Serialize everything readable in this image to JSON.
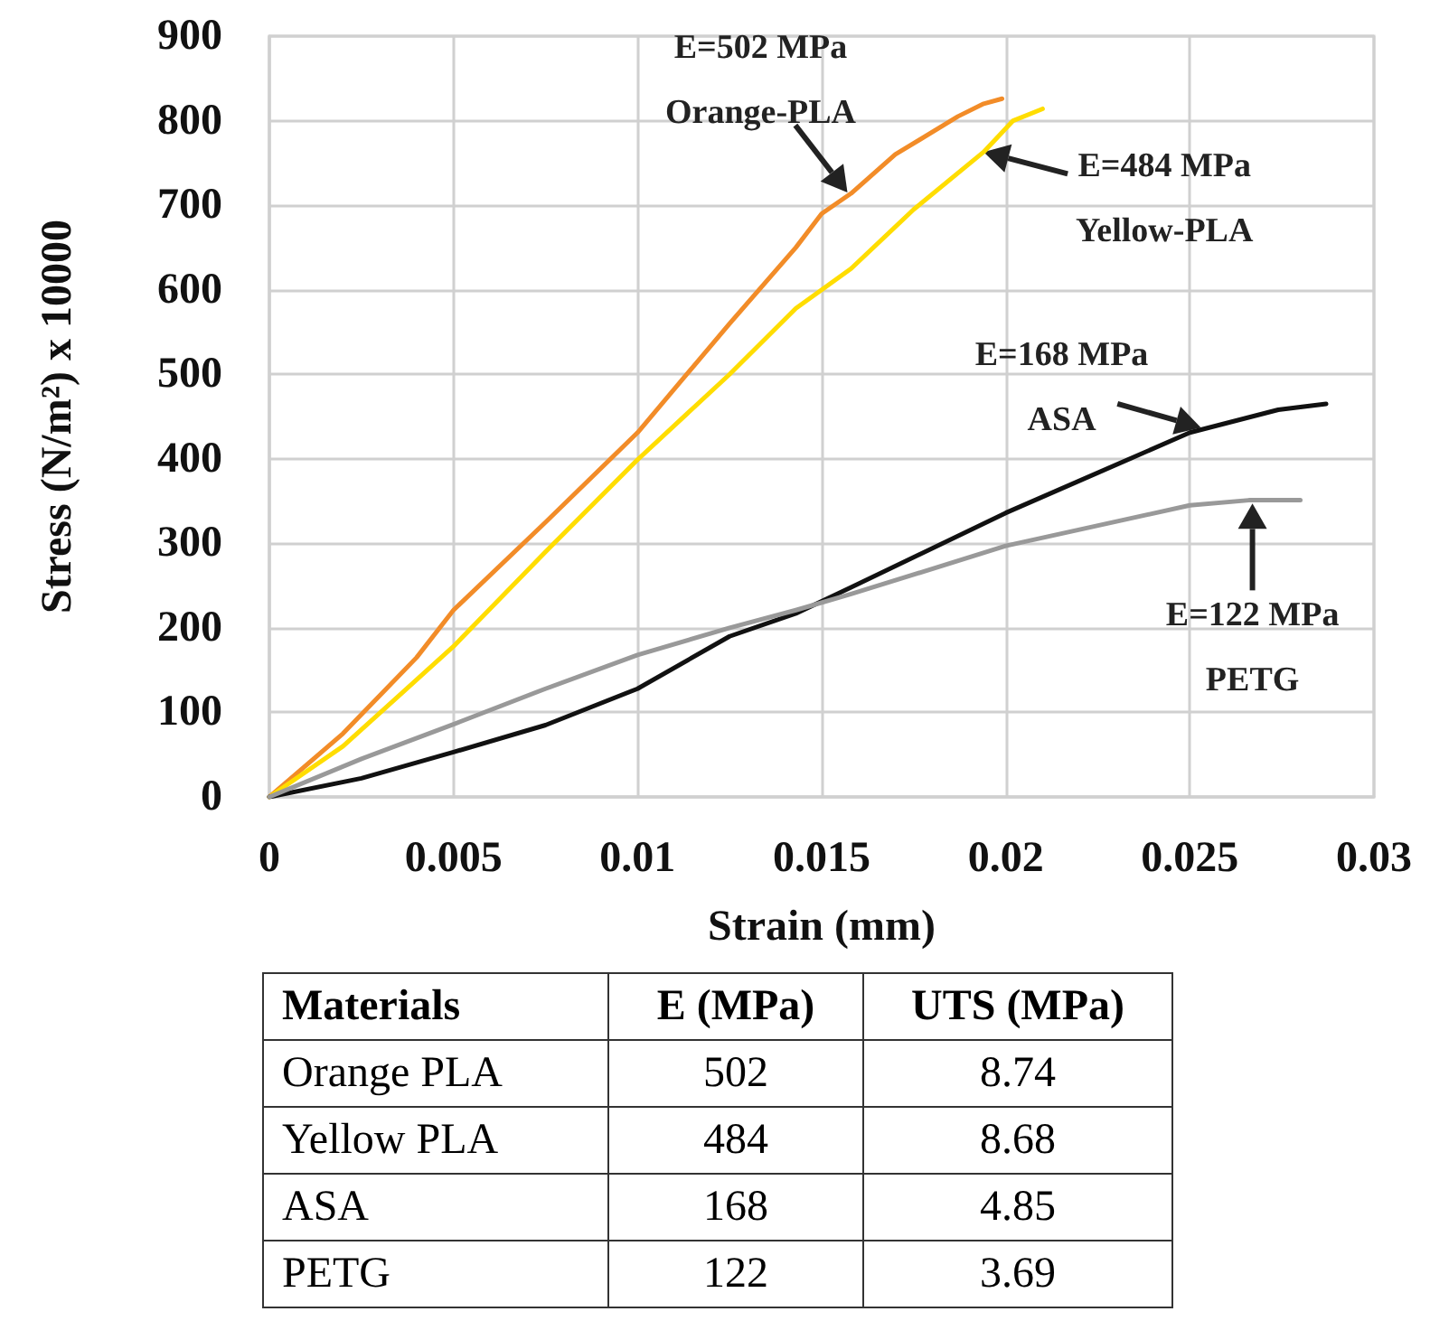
{
  "chart_data": {
    "type": "line",
    "xlabel": "Strain (mm)",
    "ylabel": "Stress (N/m²) x 10000",
    "xlim": [
      0,
      0.03
    ],
    "xticks": [
      0,
      0.005,
      0.01,
      0.015,
      0.02,
      0.025,
      0.03
    ],
    "ylim": [
      0,
      900
    ],
    "yticks": [
      0,
      100,
      200,
      300,
      400,
      500,
      600,
      700,
      800,
      900
    ],
    "grid": true,
    "marker": "none",
    "line_style": "solid",
    "series": [
      {
        "color": "#f28c28",
        "x": [
          0,
          0.002,
          0.004,
          0.005,
          0.0075,
          0.01,
          0.0125,
          0.0143,
          0.015,
          0.0158,
          0.017,
          0.0187,
          0.0194,
          0.0199
        ],
        "values": [
          0,
          75,
          165,
          221,
          325,
          431,
          560,
          650,
          690,
          714,
          760,
          805,
          820,
          826
        ]
      },
      {
        "color": "#ffdd00",
        "x": [
          0,
          0.002,
          0.005,
          0.0075,
          0.01,
          0.0125,
          0.0143,
          0.015,
          0.0158,
          0.0175,
          0.0194,
          0.0202,
          0.021
        ],
        "values": [
          0,
          60,
          178,
          290,
          399,
          500,
          578,
          600,
          625,
          695,
          763,
          800,
          814
        ]
      },
      {
        "color": "#111111",
        "x": [
          0,
          0.0025,
          0.005,
          0.0075,
          0.01,
          0.0125,
          0.0143,
          0.0158,
          0.02,
          0.025,
          0.0274,
          0.0287
        ],
        "values": [
          0,
          22,
          53,
          85,
          128,
          190,
          217,
          248,
          336,
          431,
          458,
          465
        ]
      },
      {
        "color": "#999999",
        "x": [
          0,
          0.0025,
          0.005,
          0.0075,
          0.01,
          0.0125,
          0.0143,
          0.0158,
          0.02,
          0.025,
          0.0266,
          0.028
        ],
        "values": [
          0,
          45,
          86,
          128,
          168,
          200,
          221,
          240,
          297,
          345,
          351,
          351
        ]
      }
    ],
    "annotations": [
      {
        "text": "E=502 MPa\nOrange-PLA",
        "x": 0.0157,
        "y": 715
      },
      {
        "text": "E=484 MPa\nYellow-PLA",
        "x": 0.0194,
        "y": 763
      },
      {
        "text": "E=168 MPa\nASA",
        "x": 0.0253,
        "y": 437
      },
      {
        "text": "E=122 MPa\nPETG",
        "x": 0.0267,
        "y": 347
      },
      "Materials",
      "E (MPa)",
      "UTS (MPa)",
      "Orange PLA",
      "502",
      "8.74",
      "Yellow PLA",
      "484",
      "8.68",
      "ASA",
      "168",
      "4.85",
      "PETG",
      "122",
      "3.69"
    ]
  }
}
